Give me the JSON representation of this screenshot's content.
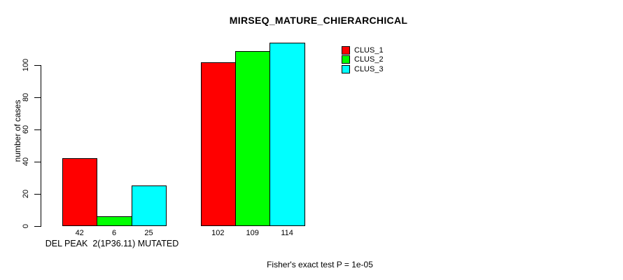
{
  "chart_data": {
    "type": "bar",
    "title": "MIRSEQ_MATURE_CHIERARCHICAL",
    "ylabel": "number of cases",
    "xlabel": "",
    "categories": [
      "DEL PEAK  2(1P36.11) MUTATED",
      ""
    ],
    "series": [
      {
        "name": "CLUS_1",
        "color": "#ff0000",
        "values": [
          42,
          102
        ]
      },
      {
        "name": "CLUS_2",
        "color": "#00ff00",
        "values": [
          6,
          109
        ]
      },
      {
        "name": "CLUS_3",
        "color": "#00ffff",
        "values": [
          25,
          114
        ]
      }
    ],
    "yticks": [
      0,
      20,
      40,
      60,
      80,
      100
    ],
    "ylim": [
      0,
      115
    ],
    "bar_value_labels": [
      [
        42,
        6,
        25
      ],
      [
        102,
        109,
        114
      ]
    ],
    "legend": {
      "position": "top-right",
      "entries": [
        {
          "label": "CLUS_1",
          "color": "#ff0000"
        },
        {
          "label": "CLUS_2",
          "color": "#00ff00"
        },
        {
          "label": "CLUS_3",
          "color": "#00ffff"
        }
      ]
    },
    "grid": false,
    "background": "#ffffff",
    "bar_border_color": "#000000",
    "axis_color": "#000000"
  },
  "footnote": "Fisher's exact test P = 1e-05"
}
